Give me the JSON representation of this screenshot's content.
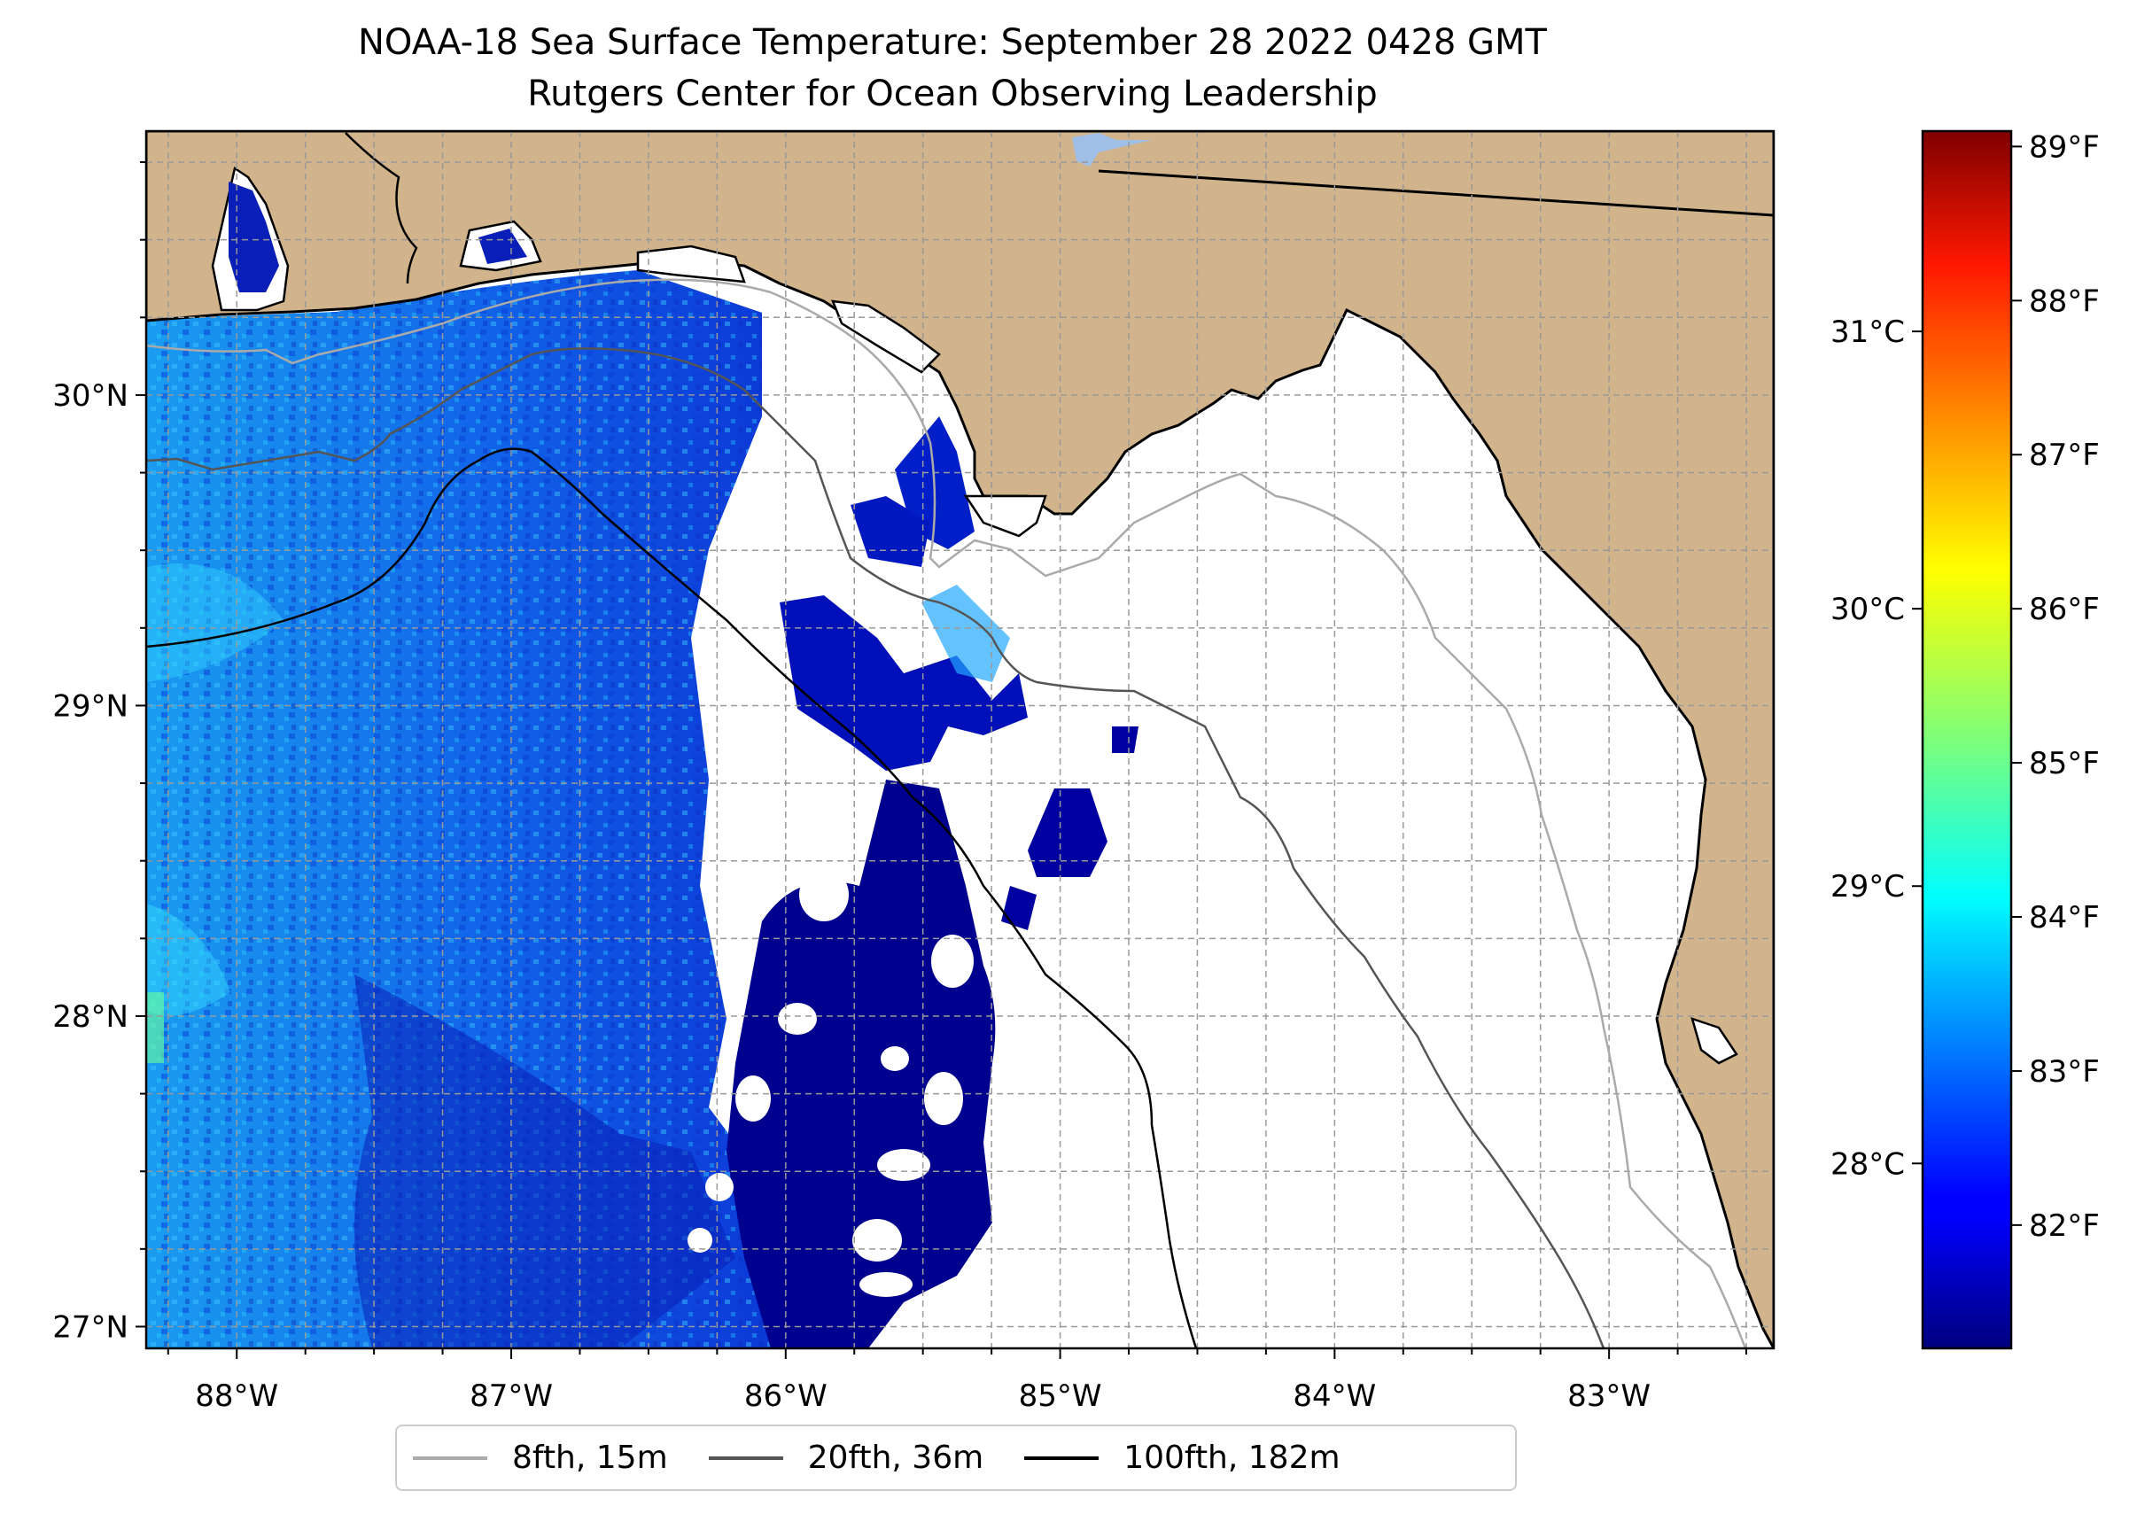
{
  "title": "NOAA-18 Sea Surface Temperature: September 28 2022 0428 GMT",
  "subtitle": "Rutgers Center for Ocean Observing Leadership",
  "map": {
    "lon_range": [
      -88.33,
      -82.4
    ],
    "lat_range": [
      26.93,
      30.85
    ],
    "lon_ticks": [
      "88°W",
      "87°W",
      "86°W",
      "85°W",
      "84°W",
      "83°W"
    ],
    "lat_ticks": [
      "27°N",
      "28°N",
      "29°N",
      "30°N"
    ],
    "land_color": "#d2b48c",
    "no_data_color": "#ffffff",
    "gridlines": "dashed"
  },
  "colorbar": {
    "colormap": "jet",
    "celsius_ticks": [
      "28°C",
      "29°C",
      "30°C",
      "31°C"
    ],
    "fahrenheit_ticks": [
      "82°F",
      "83°F",
      "84°F",
      "85°F",
      "86°F",
      "87°F",
      "88°F",
      "89°F"
    ],
    "min_f": 81.2,
    "max_f": 89.1
  },
  "legend": [
    {
      "label": "8fth, 15m",
      "color": "#aaaaaa"
    },
    {
      "label": "20fth, 36m",
      "color": "#555555"
    },
    {
      "label": "100fth, 182m",
      "color": "#000000"
    }
  ]
}
